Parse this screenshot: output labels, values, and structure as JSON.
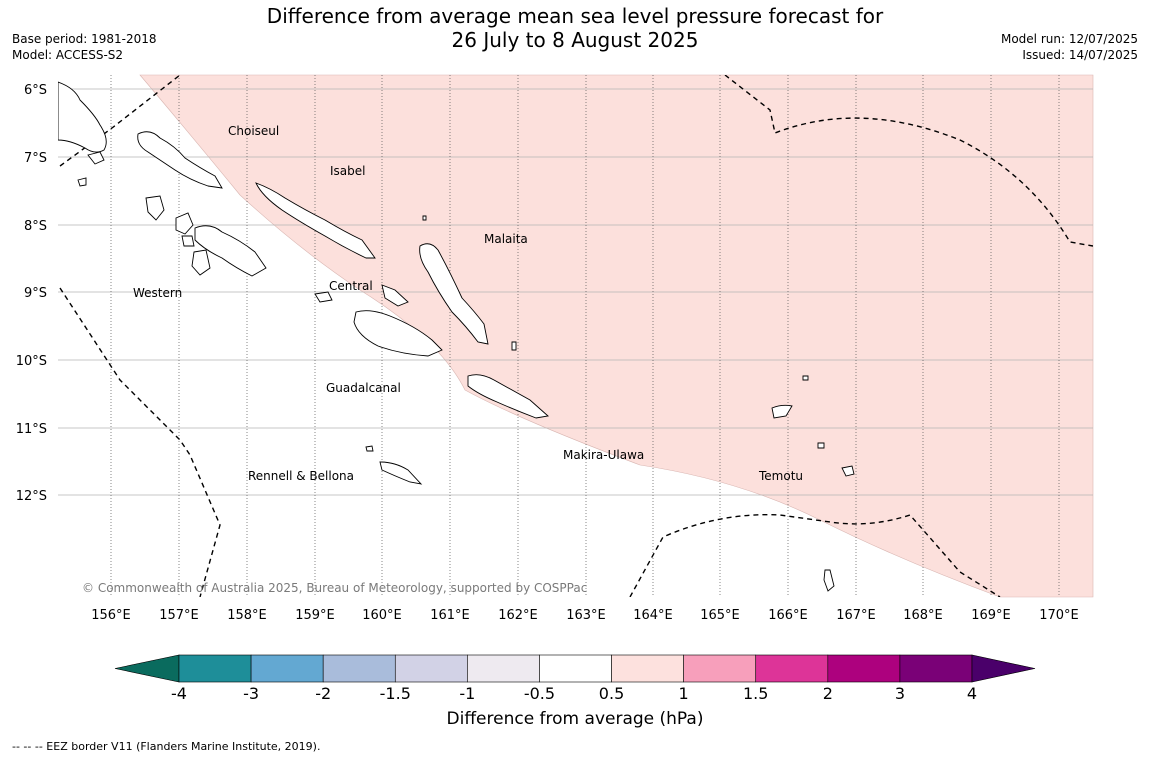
{
  "header": {
    "title_line1": "Difference from average mean sea level pressure forecast for",
    "title_line2": "26 July to 8 August 2025",
    "base_period": "Base period: 1981-2018",
    "model": "Model: ACCESS-S2",
    "model_run": "Model run: 12/07/2025",
    "issued": "Issued: 14/07/2025"
  },
  "map": {
    "lat_labels": [
      "6°S",
      "7°S",
      "8°S",
      "9°S",
      "10°S",
      "11°S",
      "12°S"
    ],
    "lon_labels": [
      "156°E",
      "157°E",
      "158°E",
      "159°E",
      "160°E",
      "161°E",
      "162°E",
      "163°E",
      "164°E",
      "165°E",
      "166°E",
      "167°E",
      "168°E",
      "169°E",
      "170°E"
    ],
    "regions": [
      "Choiseul",
      "Isabel",
      "Malaita",
      "Western",
      "Central",
      "Guadalcanal",
      "Makira-Ulawa",
      "Rennell & Bellona",
      "Temotu"
    ],
    "copyright": "© Commonwealth of Australia 2025, Bureau of Meteorology, supported by COSPPac",
    "anomaly_fill": "#fce0dc",
    "anomaly_category": "0.5 to 1"
  },
  "colorbar": {
    "ticks": [
      "-4",
      "-3",
      "-2",
      "-1.5",
      "-1",
      "-0.5",
      "0.5",
      "1",
      "1.5",
      "2",
      "3",
      "4"
    ],
    "colors": [
      "#0a6b5e",
      "#1e8e99",
      "#63a8d2",
      "#a9bcdb",
      "#d2d2e6",
      "#eeeaf0",
      "#ffffff",
      "#fde1de",
      "#f79fbb",
      "#dd3498",
      "#ad017e",
      "#7a0177",
      "#4a006a"
    ],
    "title": "Difference from average (hPa)"
  },
  "footnote": "--  --  -- EEZ border V11 (Flanders Marine Institute, 2019)."
}
